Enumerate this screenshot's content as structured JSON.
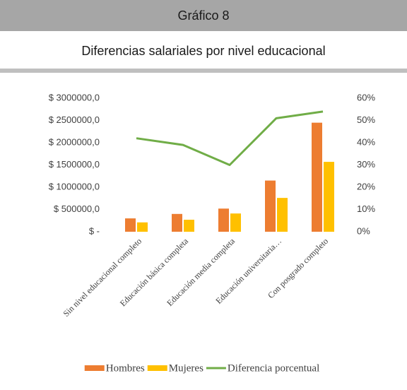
{
  "header": {
    "title": "Gráfico 8"
  },
  "chart_data": {
    "type": "bar",
    "title": "Diferencias salariales por nivel educacional",
    "categories": [
      "Sin nivel educacional completo",
      "Educación básica completa",
      "Educación media completa",
      "Educación universitaria…",
      "Con posgrado completo"
    ],
    "series": [
      {
        "name": "Hombres",
        "color": "#ed7d31",
        "values": [
          300000,
          400000,
          520000,
          1150000,
          2450000
        ]
      },
      {
        "name": "Mujeres",
        "color": "#ffc000",
        "values": [
          210000,
          270000,
          410000,
          760000,
          1570000
        ]
      },
      {
        "name": "Diferencia porcentual",
        "color": "#70ad47",
        "type": "line",
        "axis": "y2",
        "values": [
          42,
          39,
          30,
          51,
          54
        ]
      }
    ],
    "ylim": [
      0,
      3000000
    ],
    "yticks": [
      {
        "value": 0,
        "label": "$ -"
      },
      {
        "value": 500000,
        "label": "$ 500000,0"
      },
      {
        "value": 1000000,
        "label": "$ 1000000,0"
      },
      {
        "value": 1500000,
        "label": "$ 1500000,0"
      },
      {
        "value": 2000000,
        "label": "$ 2000000,0"
      },
      {
        "value": 2500000,
        "label": "$ 2500000,0"
      },
      {
        "value": 3000000,
        "label": "$ 3000000,0"
      }
    ],
    "y2lim": [
      0,
      60
    ],
    "y2ticks": [
      {
        "value": 0,
        "label": "0%"
      },
      {
        "value": 10,
        "label": "10%"
      },
      {
        "value": 20,
        "label": "20%"
      },
      {
        "value": 30,
        "label": "30%"
      },
      {
        "value": 40,
        "label": "40%"
      },
      {
        "value": 50,
        "label": "50%"
      },
      {
        "value": 60,
        "label": "60%"
      }
    ],
    "legend": "bottom"
  }
}
